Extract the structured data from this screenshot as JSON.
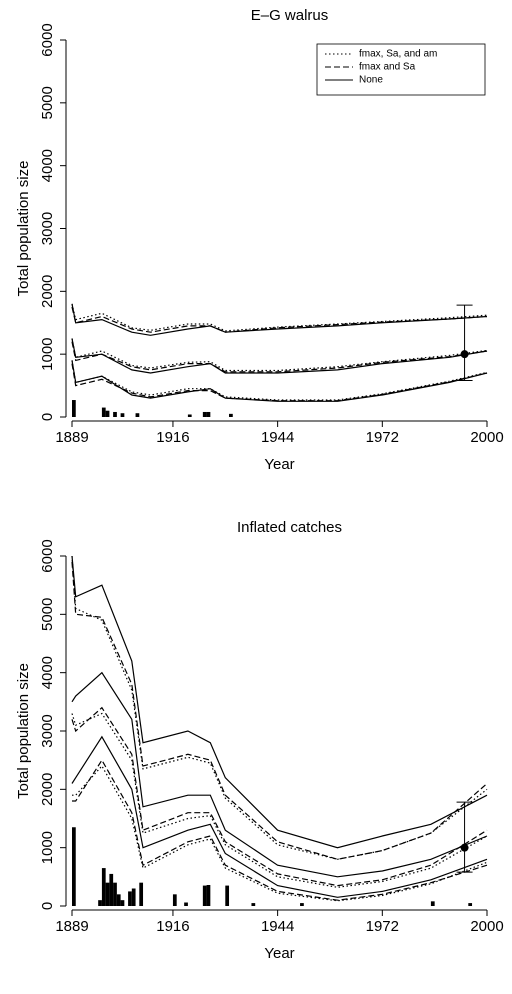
{
  "chart_data": [
    {
      "type": "line",
      "title": "E–G walrus",
      "x_label": "Year",
      "y_label": "Total population size",
      "xlim": [
        1889,
        2000
      ],
      "xticks": [
        1889,
        1916,
        1944,
        1972,
        2000
      ],
      "ylim": [
        0,
        6000
      ],
      "yticks": [
        0,
        1000,
        2000,
        3000,
        4000,
        5000,
        6000
      ],
      "legend": "top-right",
      "color": "#000000",
      "x": [
        1889,
        1890,
        1897,
        1905,
        1910,
        1920,
        1926,
        1930,
        1944,
        1960,
        1972,
        1990,
        2000
      ],
      "series": [
        {
          "name": "fmax, Sa, and am",
          "dash": "dotted",
          "values": [
            1250,
            950,
            1050,
            820,
            780,
            870,
            880,
            740,
            740,
            800,
            880,
            980,
            1060
          ],
          "lower": [
            900,
            550,
            650,
            400,
            350,
            450,
            450,
            320,
            270,
            270,
            370,
            570,
            710
          ],
          "upper": [
            1800,
            1550,
            1650,
            1420,
            1380,
            1480,
            1480,
            1370,
            1430,
            1480,
            1520,
            1580,
            1620
          ]
        },
        {
          "name": "fmax and Sa",
          "dash": "dashed",
          "values": [
            1200,
            900,
            1000,
            800,
            750,
            850,
            850,
            720,
            720,
            780,
            870,
            960,
            1050
          ],
          "lower": [
            850,
            500,
            600,
            380,
            320,
            420,
            420,
            300,
            260,
            260,
            360,
            560,
            700
          ],
          "upper": [
            1750,
            1500,
            1600,
            1400,
            1350,
            1450,
            1450,
            1350,
            1420,
            1470,
            1510,
            1560,
            1600
          ]
        },
        {
          "name": "None",
          "dash": "solid",
          "values": [
            1250,
            950,
            1000,
            750,
            700,
            800,
            850,
            700,
            700,
            750,
            850,
            950,
            1050
          ],
          "lower": [
            900,
            550,
            650,
            350,
            300,
            400,
            450,
            300,
            250,
            250,
            350,
            550,
            700
          ],
          "upper": [
            1800,
            1500,
            1550,
            1350,
            1300,
            1400,
            1450,
            1350,
            1400,
            1450,
            1500,
            1560,
            1600
          ]
        }
      ],
      "catch_years": [
        1889,
        1897,
        1898,
        1900,
        1902,
        1906,
        1920,
        1924,
        1925,
        1931
      ],
      "catch_values": [
        270,
        150,
        100,
        80,
        60,
        60,
        40,
        80,
        80,
        50
      ],
      "obs_year": 1994,
      "obs_value": 1000,
      "obs_low": 580,
      "obs_high": 1780
    },
    {
      "type": "line",
      "title": "Inflated catches",
      "x_label": "Year",
      "y_label": "Total population size",
      "xlim": [
        1889,
        2000
      ],
      "xticks": [
        1889,
        1916,
        1944,
        1972,
        2000
      ],
      "ylim": [
        0,
        6000
      ],
      "yticks": [
        0,
        1000,
        2000,
        3000,
        4000,
        5000,
        6000
      ],
      "color": "#000000",
      "x": [
        1889,
        1890,
        1897,
        1905,
        1908,
        1920,
        1926,
        1930,
        1944,
        1960,
        1972,
        1985,
        2000
      ],
      "series": [
        {
          "dash": "dotted",
          "values": [
            3300,
            3100,
            3300,
            2500,
            1250,
            1500,
            1550,
            1050,
            500,
            320,
            420,
            650,
            1200
          ],
          "lower": [
            1900,
            1900,
            2400,
            1500,
            650,
            1050,
            1150,
            650,
            220,
            90,
            180,
            380,
            750
          ],
          "upper": [
            6000,
            5100,
            4900,
            3700,
            2350,
            2550,
            2450,
            1850,
            1050,
            800,
            950,
            1250,
            2000
          ]
        },
        {
          "dash": "dashed",
          "values": [
            3200,
            3000,
            3400,
            2600,
            1300,
            1600,
            1600,
            1100,
            550,
            350,
            450,
            700,
            1300
          ],
          "lower": [
            1800,
            1800,
            2500,
            1600,
            700,
            1100,
            1200,
            700,
            250,
            100,
            200,
            400,
            700
          ],
          "upper": [
            5900,
            5000,
            4950,
            3800,
            2400,
            2600,
            2500,
            1900,
            1100,
            800,
            950,
            1250,
            2100
          ]
        },
        {
          "dash": "solid",
          "values": [
            3500,
            3600,
            4000,
            3200,
            1700,
            1900,
            1900,
            1300,
            700,
            500,
            600,
            800,
            1200
          ],
          "lower": [
            2100,
            2200,
            2900,
            2000,
            1000,
            1300,
            1400,
            900,
            350,
            150,
            250,
            450,
            800
          ],
          "upper": [
            6000,
            5300,
            5500,
            4200,
            2800,
            3000,
            2800,
            2200,
            1300,
            1000,
            1200,
            1400,
            1900
          ]
        }
      ],
      "catch_years": [
        1889,
        1896,
        1897,
        1898,
        1899,
        1900,
        1901,
        1902,
        1904,
        1905,
        1907,
        1916,
        1919,
        1924,
        1925,
        1930,
        1937,
        1950,
        1985,
        1995
      ],
      "catch_values": [
        1350,
        100,
        650,
        400,
        550,
        400,
        200,
        100,
        250,
        300,
        400,
        200,
        60,
        350,
        360,
        350,
        50,
        50,
        80,
        50
      ],
      "obs_year": 1994,
      "obs_value": 1000,
      "obs_low": 580,
      "obs_high": 1780
    }
  ]
}
